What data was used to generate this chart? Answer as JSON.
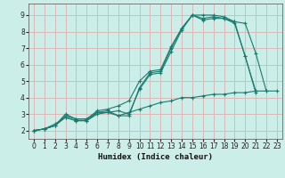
{
  "title": "",
  "xlabel": "Humidex (Indice chaleur)",
  "bg_color": "#cceee8",
  "grid_color": "#ddb8b8",
  "line_color": "#1a7a6e",
  "xlim": [
    -0.5,
    23.5
  ],
  "ylim": [
    1.5,
    9.7
  ],
  "xticks": [
    0,
    1,
    2,
    3,
    4,
    5,
    6,
    7,
    8,
    9,
    10,
    11,
    12,
    13,
    14,
    15,
    16,
    17,
    18,
    19,
    20,
    21,
    22,
    23
  ],
  "yticks": [
    2,
    3,
    4,
    5,
    6,
    7,
    8,
    9
  ],
  "lines": [
    {
      "x": [
        0,
        1,
        2,
        3,
        4,
        5,
        6,
        7,
        8,
        9,
        10,
        11,
        12,
        13,
        14,
        15,
        16,
        17,
        18,
        19,
        20,
        21
      ],
      "y": [
        2.0,
        2.1,
        2.4,
        2.8,
        2.6,
        2.6,
        3.1,
        3.2,
        2.9,
        2.9,
        4.6,
        5.5,
        5.6,
        7.0,
        8.2,
        9.0,
        8.8,
        8.9,
        8.8,
        8.6,
        6.5,
        4.4
      ]
    },
    {
      "x": [
        0,
        1,
        2,
        3,
        4,
        5,
        6,
        7,
        8,
        9,
        10,
        11,
        12,
        13,
        14,
        15,
        16,
        17,
        18,
        19,
        20,
        21
      ],
      "y": [
        2.0,
        2.1,
        2.3,
        2.8,
        2.6,
        2.6,
        3.0,
        3.1,
        3.2,
        3.0,
        4.5,
        5.4,
        5.5,
        6.8,
        8.1,
        9.0,
        8.7,
        8.8,
        8.8,
        8.5,
        6.5,
        4.3
      ]
    },
    {
      "x": [
        0,
        1,
        2,
        3,
        4,
        5,
        6,
        7,
        8,
        9,
        10,
        11,
        12,
        13,
        14,
        15,
        16,
        17,
        18,
        19,
        20,
        21,
        22
      ],
      "y": [
        2.0,
        2.1,
        2.3,
        3.0,
        2.7,
        2.7,
        3.2,
        3.3,
        3.5,
        3.8,
        5.0,
        5.6,
        5.7,
        7.1,
        8.2,
        9.0,
        9.0,
        9.0,
        8.9,
        8.6,
        8.5,
        6.7,
        4.4
      ]
    },
    {
      "x": [
        0,
        1,
        2,
        3,
        4,
        5,
        6,
        7,
        8,
        9,
        10,
        11,
        12,
        13,
        14,
        15,
        16,
        17,
        18,
        19,
        20,
        21,
        22,
        23
      ],
      "y": [
        2.0,
        2.1,
        2.3,
        2.9,
        2.7,
        2.7,
        3.1,
        3.1,
        2.9,
        3.1,
        3.3,
        3.5,
        3.7,
        3.8,
        4.0,
        4.0,
        4.1,
        4.2,
        4.2,
        4.3,
        4.3,
        4.4,
        4.4,
        4.4
      ]
    }
  ]
}
